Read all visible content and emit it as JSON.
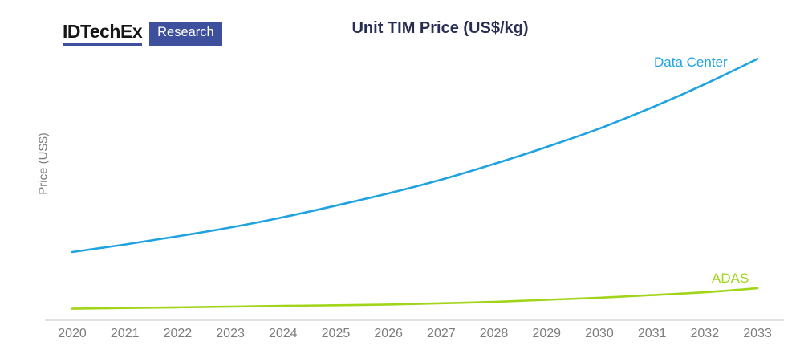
{
  "logo": {
    "brand": "IDTechEx",
    "badge": "Research"
  },
  "colors": {
    "brand_blue": "#3D4F9D",
    "title_navy": "#272E52",
    "data_center_blue": "#1FA3E0",
    "adas_green": "#A1D51A",
    "axis_gray": "#D8D8D8",
    "tick_text_gray": "#7C7C7C"
  },
  "chart_data": {
    "type": "line",
    "title": "Unit TIM Price (US$/kg)",
    "ylabel": "Price (US$)",
    "xlabel": "",
    "x": [
      2020,
      2021,
      2022,
      2023,
      2024,
      2025,
      2026,
      2027,
      2028,
      2029,
      2030,
      2031,
      2032,
      2033
    ],
    "value_units": "relative index (y-axis shown without numeric scale; Data Center 2020 = 1.00)",
    "ylim": [
      0,
      4.2
    ],
    "grid": false,
    "legend_position": "labels at right end of each line",
    "series": [
      {
        "name": "Data Center",
        "color": "#1FA3E0",
        "values": [
          1.0,
          1.11,
          1.23,
          1.36,
          1.51,
          1.68,
          1.86,
          2.06,
          2.29,
          2.54,
          2.81,
          3.12,
          3.46,
          3.83
        ]
      },
      {
        "name": "ADAS",
        "color": "#A1D51A",
        "values": [
          0.17,
          0.18,
          0.19,
          0.2,
          0.21,
          0.22,
          0.23,
          0.25,
          0.27,
          0.3,
          0.33,
          0.37,
          0.41,
          0.47
        ]
      }
    ]
  }
}
